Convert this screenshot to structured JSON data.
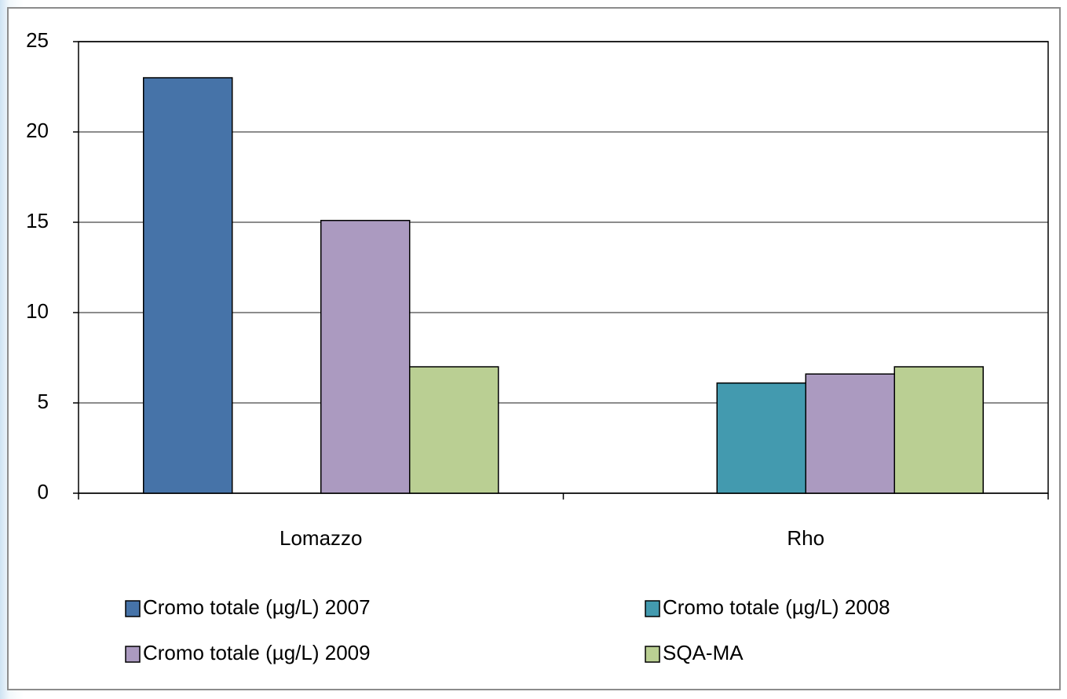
{
  "chart_data": {
    "type": "bar",
    "categories": [
      "Lomazzo",
      "Rho"
    ],
    "series": [
      {
        "name": "Cromo totale  (µg/L) 2007",
        "color": "#4673a8",
        "values": [
          23,
          null
        ]
      },
      {
        "name": "Cromo totale  (µg/L) 2008",
        "color": "#439aaf",
        "values": [
          null,
          6.1
        ]
      },
      {
        "name": "Cromo totale  (µg/L) 2009",
        "color": "#ab9ac0",
        "values": [
          15.1,
          6.6
        ]
      },
      {
        "name": "SQA-MA",
        "color": "#bacf93",
        "values": [
          7,
          7
        ]
      }
    ],
    "ylim": [
      0,
      25
    ],
    "yticks": [
      0,
      5,
      10,
      15,
      20,
      25
    ],
    "grid": true,
    "legend": "bottom"
  }
}
